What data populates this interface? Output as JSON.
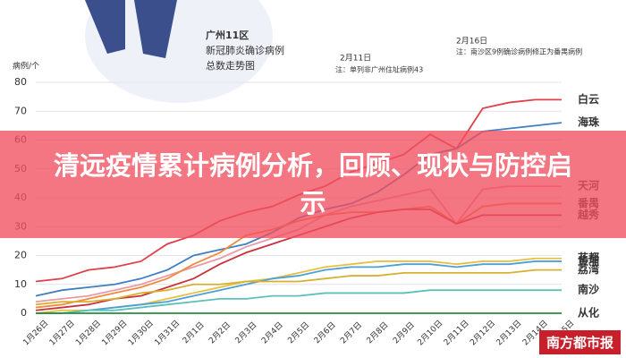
{
  "banner_title": "清远疫情累计病例分析，回顾、现状与防控启示",
  "watermark": "南方都市报",
  "chart_data": {
    "type": "line",
    "title": [
      "广州11区",
      "新冠肺炎确诊病例",
      "总数走势图"
    ],
    "y_unit": "病例/个",
    "notes": [
      {
        "date": "2月11日",
        "text": "注：单列非广州住址病例43"
      },
      {
        "date": "2月16日",
        "text": "注：南沙区9例确诊病例修正为番禺病例"
      }
    ],
    "categories": [
      "1月26日",
      "1月27日",
      "1月28日",
      "1月29日",
      "1月30日",
      "1月31日",
      "2月1日",
      "2月2日",
      "2月3日",
      "2月4日",
      "2月5日",
      "2月6日",
      "2月7日",
      "2月8日",
      "2月9日",
      "2月10日",
      "2月11日",
      "2月12日",
      "2月13日",
      "2月14日",
      "2月15日"
    ],
    "ylim": [
      0,
      80
    ],
    "yticks": [
      0,
      10,
      20,
      30,
      40,
      50,
      60,
      70,
      80
    ],
    "grid": true,
    "series": [
      {
        "name": "白云",
        "color": "#e0404a",
        "values": [
          11,
          12,
          15,
          16,
          18,
          24,
          27,
          32,
          35,
          37,
          41,
          44,
          49,
          52,
          55,
          62,
          57,
          71,
          73,
          74,
          74
        ]
      },
      {
        "name": "海珠",
        "color": "#3f7fbf",
        "values": [
          6,
          8,
          9,
          10,
          12,
          15,
          20,
          22,
          24,
          28,
          33,
          36,
          38,
          42,
          48,
          55,
          57,
          63,
          64,
          65,
          66
        ]
      },
      {
        "name": "天河",
        "color": "#e89aa8",
        "values": [
          4,
          5,
          6,
          8,
          10,
          13,
          16,
          19,
          23,
          26,
          29,
          34,
          37,
          39,
          41,
          43,
          31,
          43,
          44,
          44,
          44
        ]
      },
      {
        "name": "番禺",
        "color": "#f08a3c",
        "values": [
          2,
          3,
          5,
          7,
          9,
          12,
          17,
          21,
          27,
          29,
          32,
          34,
          35,
          35,
          36,
          37,
          31,
          37,
          38,
          38,
          38
        ]
      },
      {
        "name": "越秀",
        "color": "#c8323c",
        "values": [
          1,
          2,
          3,
          5,
          6,
          9,
          12,
          17,
          21,
          24,
          27,
          30,
          33,
          35,
          36,
          36,
          31,
          34,
          34,
          34,
          34
        ]
      },
      {
        "name": "花都",
        "color": "#e8c040",
        "values": [
          0,
          1,
          1,
          2,
          3,
          5,
          7,
          9,
          11,
          12,
          14,
          16,
          17,
          18,
          18,
          18,
          17,
          18,
          18,
          19,
          19
        ]
      },
      {
        "name": "黄埔",
        "color": "#4aa0d8",
        "values": [
          0,
          0,
          1,
          2,
          3,
          4,
          6,
          8,
          10,
          12,
          13,
          15,
          16,
          16,
          17,
          17,
          16,
          17,
          17,
          18,
          18
        ]
      },
      {
        "name": "荔湾",
        "color": "#d8b030",
        "values": [
          3,
          4,
          4,
          5,
          7,
          8,
          10,
          10,
          11,
          11,
          11,
          12,
          13,
          13,
          14,
          14,
          14,
          14,
          14,
          15,
          15
        ]
      },
      {
        "name": "南沙",
        "color": "#5cc0b8",
        "values": [
          0,
          0,
          1,
          1,
          2,
          3,
          4,
          5,
          5,
          6,
          6,
          7,
          7,
          7,
          7,
          8,
          8,
          8,
          8,
          8,
          8
        ]
      },
      {
        "name": "从化",
        "color": "#2a8a40",
        "values": [
          0,
          0,
          0,
          0,
          0,
          0,
          0,
          0,
          0,
          0,
          0,
          0,
          0,
          0,
          0,
          0,
          0,
          0,
          0,
          0,
          0
        ]
      }
    ]
  }
}
